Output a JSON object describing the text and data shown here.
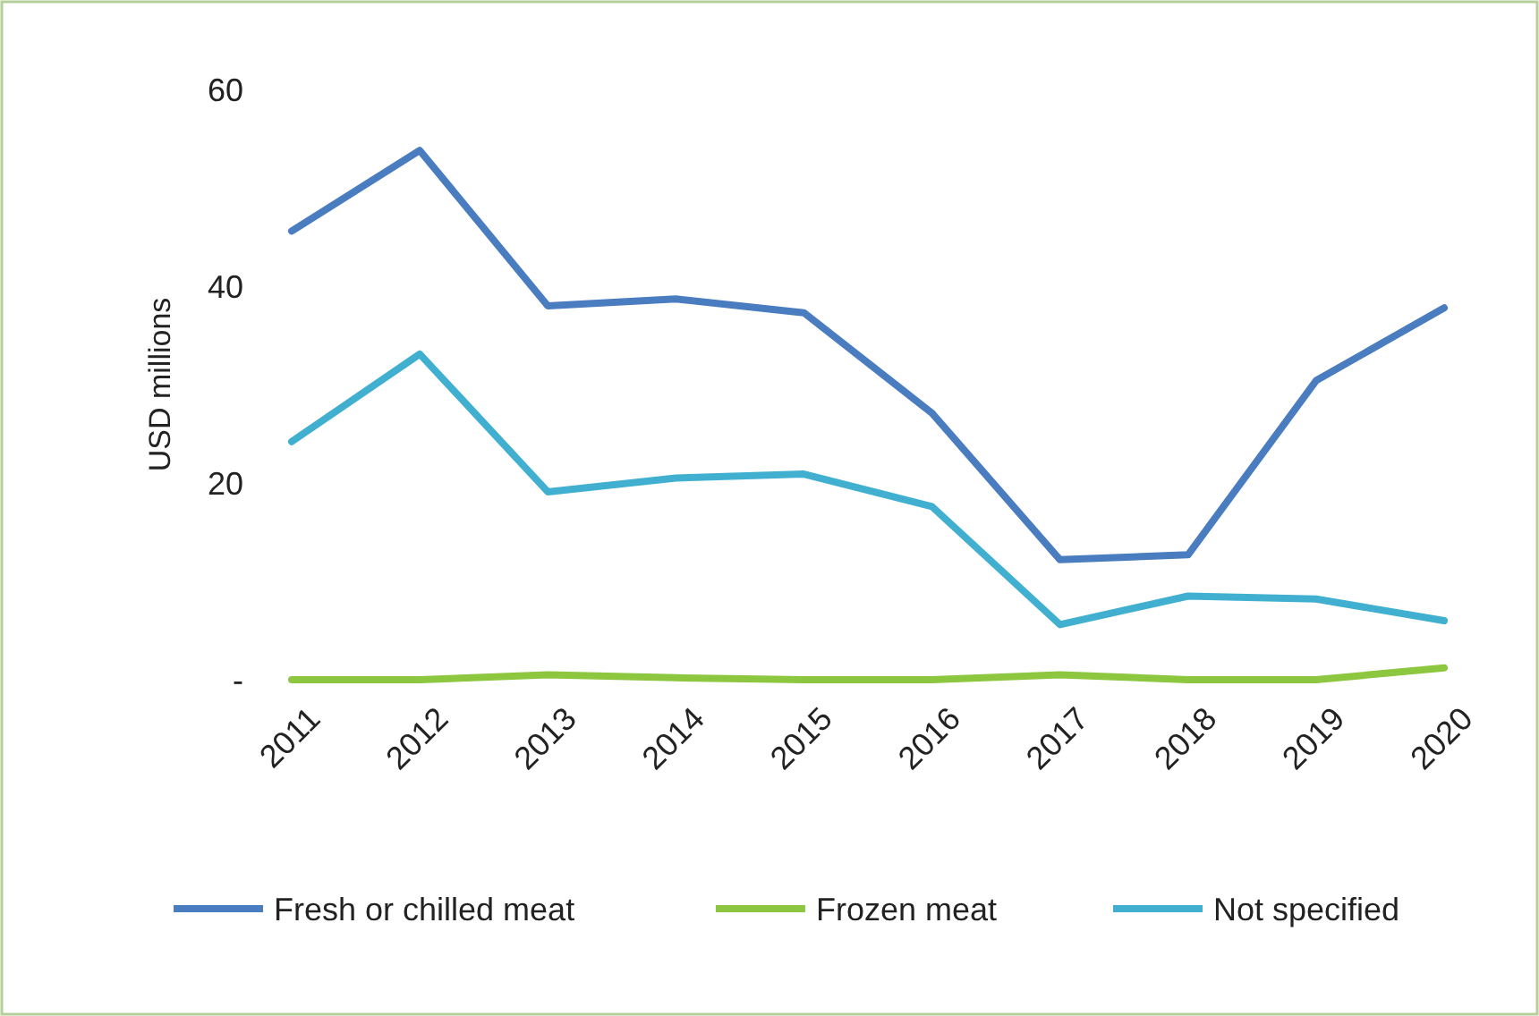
{
  "chart_data": {
    "type": "line",
    "ylabel": "USD millions",
    "categories": [
      "2011",
      "2012",
      "2013",
      "2014",
      "2015",
      "2016",
      "2017",
      "2018",
      "2019",
      "2020"
    ],
    "series": [
      {
        "name": "Fresh or chilled meat",
        "color": "#4a7cc0",
        "values": [
          45.6,
          53.8,
          38,
          38.7,
          37.3,
          27.1,
          12.2,
          12.7,
          30.4,
          37.8
        ]
      },
      {
        "name": "Frozen meat",
        "color": "#8dc63f",
        "values": [
          0,
          0,
          0.5,
          0.2,
          0,
          0,
          0.5,
          0,
          0,
          1.2
        ]
      },
      {
        "name": "Not specified",
        "color": "#41b0d0",
        "values": [
          24.2,
          33.1,
          19.1,
          20.5,
          20.9,
          17.6,
          5.6,
          8.5,
          8.2,
          6
        ]
      }
    ],
    "ylim": [
      0,
      60
    ],
    "yticks": [
      {
        "value": 0,
        "label": "-"
      },
      20,
      40,
      60
    ],
    "grid": false,
    "legend": "bottom",
    "marker": "none",
    "line_style": "solid"
  }
}
